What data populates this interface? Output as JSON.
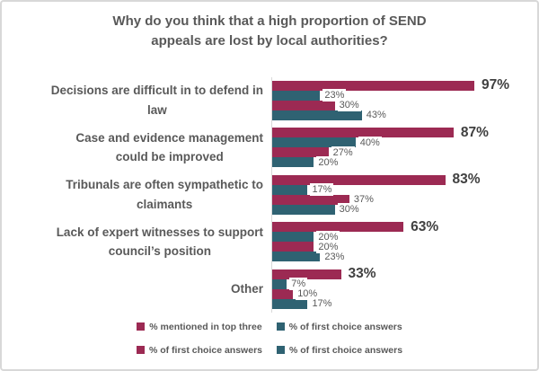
{
  "chart_data": {
    "type": "bar",
    "orientation": "horizontal",
    "title": "Why do you think that a high proportion of SEND appeals are lost by local authorities?",
    "categories": [
      "Decisions are difficult in to defend in\nlaw",
      "Case and evidence management\ncould be improved",
      "Tribunals are often sympathetic to\nclaimants",
      "Lack of expert witnesses to support\ncouncil’s position",
      "Other"
    ],
    "series": [
      {
        "name": "% mentioned in top three",
        "color": "maroon",
        "values": [
          97,
          87,
          83,
          63,
          33
        ]
      },
      {
        "name": "% of first choice answers",
        "color": "teal",
        "values": [
          23,
          40,
          17,
          20,
          7
        ]
      },
      {
        "name": "% of first choice answers",
        "color": "maroon",
        "values": [
          30,
          27,
          37,
          20,
          10
        ]
      },
      {
        "name": "% of first choice answers",
        "color": "teal",
        "values": [
          43,
          20,
          30,
          23,
          17
        ]
      }
    ],
    "value_suffix": "%",
    "value_labels": true,
    "xlim": [
      0,
      105
    ],
    "grid": false,
    "legend_position": "bottom",
    "bar_colors_hex": {
      "maroon": "#9C2A53",
      "teal": "#2F6272"
    },
    "text_colors_hex": {
      "title": "#595959",
      "big_label": "#404040",
      "small_label": "#595959"
    }
  },
  "legend": {
    "rows": [
      [
        {
          "label": "% mentioned in top three",
          "color": "maroon"
        },
        {
          "label": "% of first choice answers",
          "color": "teal"
        }
      ],
      [
        {
          "label": "% of first choice answers",
          "color": "maroon"
        },
        {
          "label": "% of first choice answers",
          "color": "teal"
        }
      ]
    ]
  }
}
